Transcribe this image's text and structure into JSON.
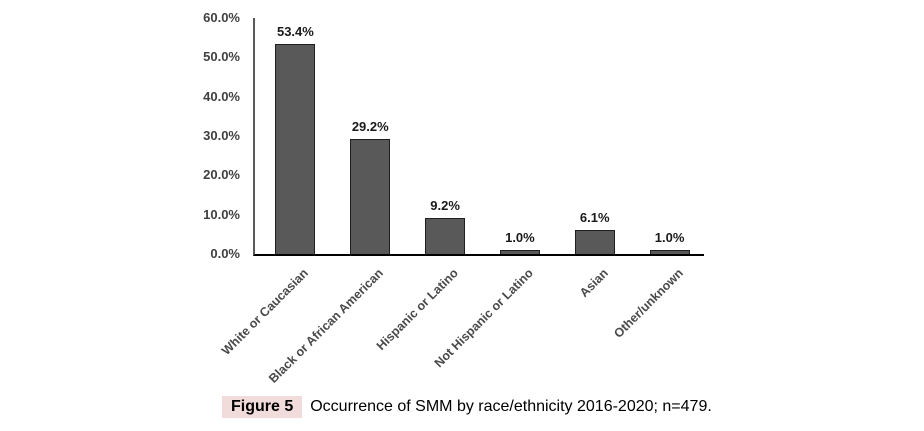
{
  "chart_data": {
    "type": "bar",
    "categories": [
      "White or Caucasian",
      "Black or African American",
      "Hispanic or Latino",
      "Not Hispanic or Latino",
      "Asian",
      "Other/unknown"
    ],
    "values": [
      53.4,
      29.2,
      9.2,
      1.0,
      6.1,
      1.0
    ],
    "data_labels": [
      "53.4%",
      "29.2%",
      "9.2%",
      "1.0%",
      "6.1%",
      "1.0%"
    ],
    "title": "",
    "xlabel": "",
    "ylabel": "",
    "ylim": [
      0,
      60
    ],
    "ytick_step": 10,
    "ytick_labels": [
      "0.0%",
      "10.0%",
      "20.0%",
      "30.0%",
      "40.0%",
      "50.0%",
      "60.0%"
    ],
    "grid": false,
    "legend": false,
    "bar_color": "#595959",
    "bar_border_color": "#1f1f1f",
    "axis_color": "#000000"
  },
  "caption": {
    "label": "Figure 5",
    "text": "Occurrence of SMM by race/ethnicity 2016-2020; n=479.",
    "label_highlight": "#f2dbdb"
  }
}
